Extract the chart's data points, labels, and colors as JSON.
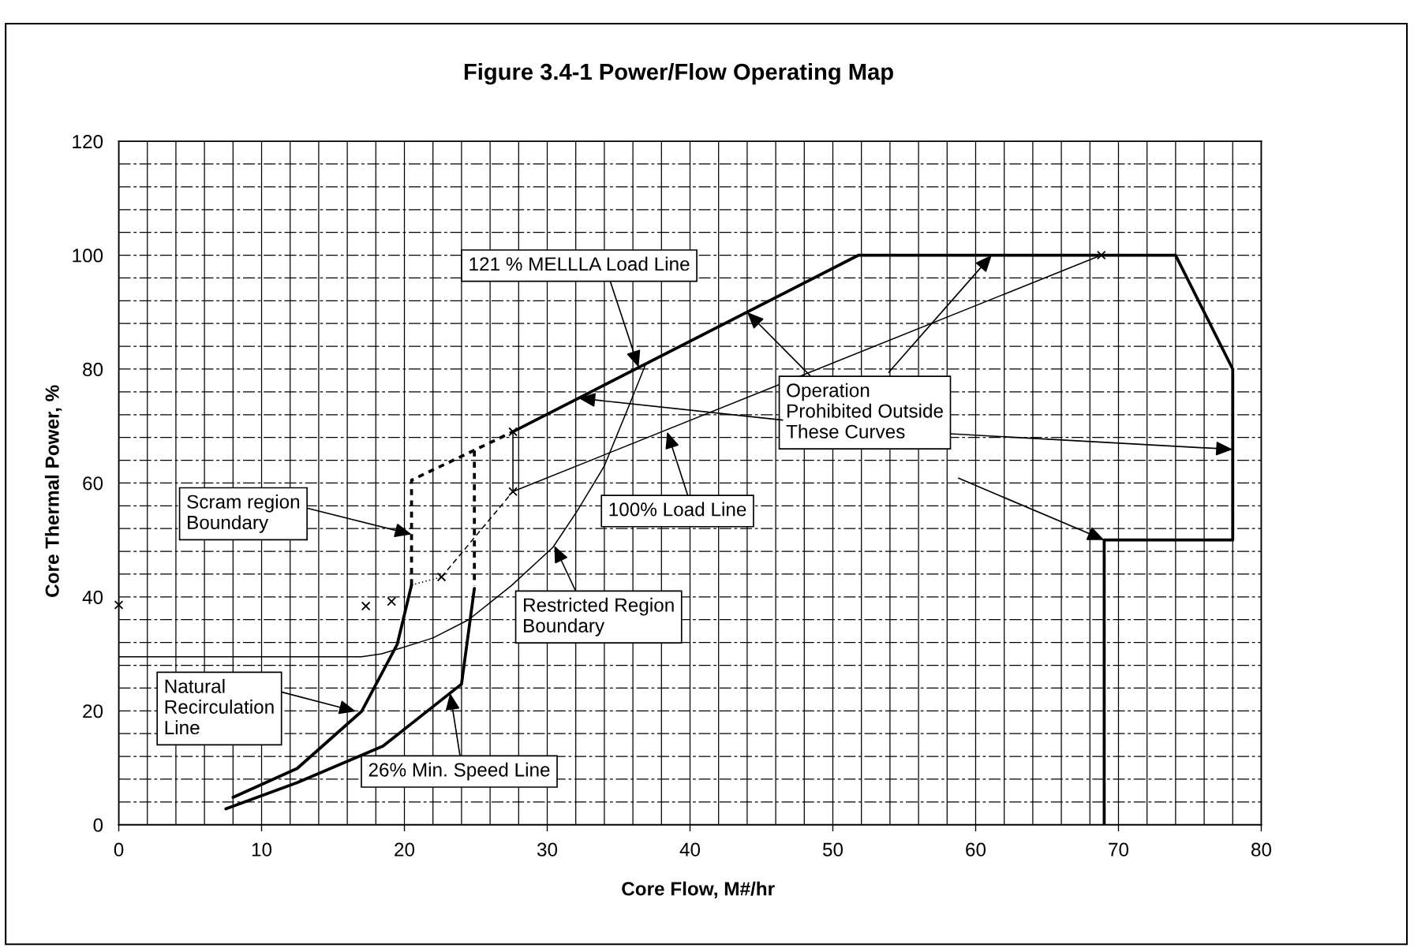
{
  "chart_data": {
    "type": "line",
    "title": "Figure 3.4-1 Power/Flow Operating Map",
    "xlabel": "Core Flow, M#/hr",
    "ylabel": "Core Thermal Power, %",
    "xlim": [
      0,
      80
    ],
    "ylim": [
      0,
      120
    ],
    "xticks": [
      0,
      {
        "value": 2,
        "label": null
      },
      {
        "value": 4,
        "label": null
      },
      {
        "value": 6,
        "label": null
      },
      {
        "value": 8,
        "label": null
      },
      10,
      {
        "value": 12,
        "label": null
      },
      {
        "value": 14,
        "label": null
      },
      {
        "value": 16,
        "label": null
      },
      {
        "value": 18,
        "label": null
      },
      20,
      {
        "value": 22,
        "label": null
      },
      {
        "value": 24,
        "label": null
      },
      {
        "value": 26,
        "label": null
      },
      {
        "value": 28,
        "label": null
      },
      30,
      {
        "value": 32,
        "label": null
      },
      {
        "value": 34,
        "label": null
      },
      {
        "value": 36,
        "label": null
      },
      {
        "value": 38,
        "label": null
      },
      40,
      {
        "value": 42,
        "label": null
      },
      {
        "value": 44,
        "label": null
      },
      {
        "value": 46,
        "label": null
      },
      {
        "value": 48,
        "label": null
      },
      50,
      {
        "value": 52,
        "label": null
      },
      {
        "value": 54,
        "label": null
      },
      {
        "value": 56,
        "label": null
      },
      {
        "value": 58,
        "label": null
      },
      60,
      {
        "value": 62,
        "label": null
      },
      {
        "value": 64,
        "label": null
      },
      {
        "value": 66,
        "label": null
      },
      {
        "value": 68,
        "label": null
      },
      70,
      {
        "value": 72,
        "label": null
      },
      {
        "value": 74,
        "label": null
      },
      {
        "value": 76,
        "label": null
      },
      {
        "value": 78,
        "label": null
      },
      80
    ],
    "yticks": [
      0,
      {
        "value": 4,
        "label": null
      },
      {
        "value": 8,
        "label": null
      },
      {
        "value": 12,
        "label": null
      },
      {
        "value": 16,
        "label": null
      },
      20,
      {
        "value": 24,
        "label": null
      },
      {
        "value": 28,
        "label": null
      },
      {
        "value": 32,
        "label": null
      },
      {
        "value": 36,
        "label": null
      },
      40,
      {
        "value": 44,
        "label": null
      },
      {
        "value": 48,
        "label": null
      },
      {
        "value": 52,
        "label": null
      },
      {
        "value": 56,
        "label": null
      },
      60,
      {
        "value": 64,
        "label": null
      },
      {
        "value": 68,
        "label": null
      },
      {
        "value": 72,
        "label": null
      },
      {
        "value": 76,
        "label": null
      },
      80,
      {
        "value": 84,
        "label": null
      },
      {
        "value": 88,
        "label": null
      },
      {
        "value": 92,
        "label": null
      },
      {
        "value": 96,
        "label": null
      },
      100,
      {
        "value": 104,
        "label": null
      },
      {
        "value": 108,
        "label": null
      },
      {
        "value": 112,
        "label": null
      },
      {
        "value": 116,
        "label": null
      },
      120
    ],
    "grid": true,
    "series": [
      {
        "color": "#000000",
        "line_style": "solid",
        "x": [
          27.6,
          51.8,
          74,
          78,
          78,
          69,
          69
        ],
        "values": [
          69,
          100,
          100,
          80,
          50,
          50,
          0
        ]
      },
      {
        "color": "#000000",
        "line_style": "solid",
        "x": [
          27.6,
          68.8
        ],
        "values": [
          58.5,
          100
        ]
      },
      {
        "color": "#000000",
        "line_style": "dashed",
        "x": [
          22.6,
          27.6
        ],
        "values": [
          43.5,
          58.5
        ]
      },
      {
        "color": "#000000",
        "line_style": "solid",
        "x": [
          27.6,
          27.6
        ],
        "values": [
          58.5,
          69
        ]
      },
      {
        "color": "#000000",
        "line_style": "dashed",
        "x": [
          20.5,
          20.5,
          27.6
        ],
        "values": [
          42.1,
          60.5,
          69
        ]
      },
      {
        "color": "#000000",
        "line_style": "dashed",
        "x": [
          24.9,
          24.9
        ],
        "values": [
          65.7,
          42
        ]
      },
      {
        "color": "#000000",
        "line_style": "solid",
        "x": [
          8,
          12.5,
          17,
          19.5,
          20.5
        ],
        "values": [
          4.8,
          9.9,
          19.9,
          31.7,
          42.1
        ]
      },
      {
        "color": "#000000",
        "line_style": "solid",
        "x": [
          7.5,
          12.5,
          18.5,
          24,
          24.9
        ],
        "values": [
          2.8,
          7.4,
          13.8,
          24.7,
          41.5
        ]
      },
      {
        "color": "#000000",
        "line_style": "solid",
        "x": [
          0,
          17,
          18.4,
          19.6,
          22,
          24.5,
          27.5,
          30.4,
          32.1,
          34,
          35.7,
          36.9
        ],
        "values": [
          29.5,
          29.5,
          30,
          30.9,
          32.8,
          36,
          42,
          48.7,
          55.1,
          63,
          73.4,
          80.9
        ]
      },
      {
        "color": "#000000",
        "line_style": "dotted",
        "x": [
          20.5,
          22.6
        ],
        "values": [
          42.1,
          43.5
        ]
      },
      {
        "type": "scatter",
        "marker": "cross",
        "color": "#000000",
        "x": [
          0,
          17.3,
          19.1,
          22.6,
          27.6,
          27.6,
          68.8
        ],
        "values": [
          38.6,
          38.4,
          39.2,
          43.5,
          58.5,
          69,
          100
        ]
      }
    ],
    "annotations": [
      {
        "text": "121 % MELLLA Load Line",
        "x": 36.4,
        "y": 80.3
      },
      {
        "text": "100% Load Line",
        "x": 38.4,
        "y": 69
      },
      {
        "text": "Scram region\nBoundary",
        "x": 20.5,
        "y": 51
      },
      {
        "text": "Restricted Region\nBoundary",
        "x": 30.5,
        "y": 49
      },
      {
        "text": "Natural\nRecirculation\nLine",
        "x": 16.6,
        "y": 19.9
      },
      {
        "text": "26% Min. Speed Line",
        "x": 23.2,
        "y": 23.1
      },
      {
        "text": "Operation\nProhibited Outside\nThese Curves",
        "x": 44,
        "y": 90
      }
    ]
  }
}
